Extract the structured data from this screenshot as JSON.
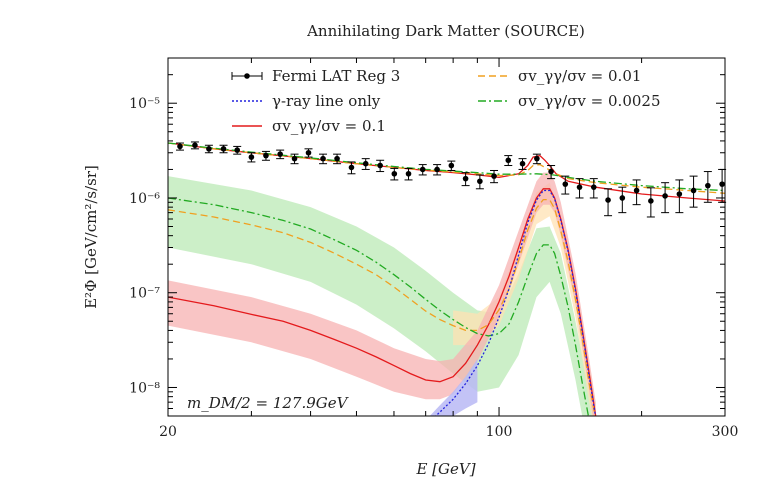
{
  "chart_data": {
    "type": "line",
    "title": "Annihilating Dark Matter (SOURCE)",
    "xlabel": "E [GeV]",
    "ylabel": "E²Φ [GeV/cm²/s/sr]",
    "xscale": "log",
    "yscale": "log",
    "xlim": [
      20,
      300
    ],
    "ylim": [
      5e-09,
      3e-05
    ],
    "x_ticks": [
      {
        "value": 20,
        "label": "20"
      },
      {
        "value": 100,
        "label": "100"
      },
      {
        "value": 300,
        "label": "300"
      }
    ],
    "y_ticks": [
      {
        "value": 1e-08,
        "label": "10⁻⁸"
      },
      {
        "value": 1e-07,
        "label": "10⁻⁷"
      },
      {
        "value": 1e-06,
        "label": "10⁻⁶"
      },
      {
        "value": 1e-05,
        "label": "10⁻⁵"
      }
    ],
    "annotation": "m_DM/2 = 127.9GeV",
    "legend": [
      {
        "label": "Fermi LAT Reg 3",
        "style": "errorbar",
        "color": "#000000"
      },
      {
        "label": "γ-ray line only",
        "style": "dotted",
        "color": "#2222dd"
      },
      {
        "label": "σv_γγ/σv = 0.1",
        "style": "solid",
        "color": "#e41a1c"
      },
      {
        "label": "σv_γγ/σv = 0.01",
        "style": "dashed",
        "color": "#f0a020"
      },
      {
        "label": "σv_γγ/σv = 0.0025",
        "style": "dashdot",
        "color": "#22aa22"
      }
    ],
    "data_points": {
      "name": "Fermi LAT Reg 3",
      "x": [
        21.2,
        22.8,
        24.4,
        26.2,
        28.0,
        30.0,
        32.2,
        34.5,
        37.0,
        39.6,
        42.5,
        45.5,
        48.8,
        52.3,
        56.1,
        60.1,
        64.4,
        69.0,
        74.0,
        79.3,
        85.0,
        91.1,
        97.6,
        104.6,
        112.1,
        120.2,
        128.8,
        138.0,
        147.9,
        158.5,
        169.9,
        182.1,
        195.2,
        209.2,
        224.2,
        240.3,
        257.5,
        276.0,
        295.8
      ],
      "y": [
        3.5e-06,
        3.6e-06,
        3.3e-06,
        3.3e-06,
        3.2e-06,
        2.7e-06,
        2.8e-06,
        2.9e-06,
        2.6e-06,
        3e-06,
        2.6e-06,
        2.6e-06,
        2.1e-06,
        2.3e-06,
        2.2e-06,
        1.8e-06,
        1.8e-06,
        2e-06,
        2e-06,
        2.2e-06,
        1.6e-06,
        1.5e-06,
        1.7e-06,
        2.5e-06,
        2.3e-06,
        2.6e-06,
        1.9e-06,
        1.4e-06,
        1.3e-06,
        1.3e-06,
        9.5e-07,
        1e-06,
        1.2e-06,
        9.3e-07,
        1.05e-06,
        1.1e-06,
        1.2e-06,
        1.35e-06,
        1.4e-06
      ],
      "err_lo": [
        3e-07,
        3e-07,
        3e-07,
        3e-07,
        3e-07,
        3e-07,
        3e-07,
        3e-07,
        3e-07,
        3e-07,
        3e-07,
        3e-07,
        3e-07,
        3e-07,
        3e-07,
        2.5e-07,
        2.5e-07,
        2.5e-07,
        2.5e-07,
        2.5e-07,
        2.5e-07,
        2.5e-07,
        2.5e-07,
        3e-07,
        3e-07,
        3e-07,
        3e-07,
        3e-07,
        3e-07,
        3e-07,
        3e-07,
        3e-07,
        3.5e-07,
        3e-07,
        3.5e-07,
        4e-07,
        4e-07,
        4.5e-07,
        5e-07
      ],
      "err_hi": [
        3e-07,
        3e-07,
        3e-07,
        3e-07,
        3e-07,
        3e-07,
        3e-07,
        3e-07,
        3e-07,
        3e-07,
        3e-07,
        3e-07,
        3e-07,
        3e-07,
        3e-07,
        2.5e-07,
        2.5e-07,
        2.5e-07,
        2.5e-07,
        2.5e-07,
        2.5e-07,
        2.5e-07,
        2.5e-07,
        3e-07,
        3e-07,
        3e-07,
        3e-07,
        3e-07,
        3e-07,
        3e-07,
        3e-07,
        3e-07,
        3.5e-07,
        3.5e-07,
        4e-07,
        4.5e-07,
        5e-07,
        5.5e-07,
        6e-07
      ]
    },
    "series": [
      {
        "name": "Fermi LAT Reg 3 fit (0.1)",
        "kind": "total",
        "color": "#e41a1c",
        "dash": "",
        "x": [
          20,
          25,
          30,
          40,
          50,
          60,
          70,
          80,
          90,
          100,
          110,
          115,
          118,
          122,
          125,
          127.9,
          132,
          140,
          160,
          200,
          250,
          300
        ],
        "y": [
          3.8e-06,
          3.3e-06,
          3e-06,
          2.6e-06,
          2.3e-06,
          2.1e-06,
          1.95e-06,
          1.85e-06,
          1.75e-06,
          1.65e-06,
          1.8e-06,
          2.2e-06,
          2.7e-06,
          2.8e-06,
          2.5e-06,
          2.2e-06,
          1.8e-06,
          1.5e-06,
          1.3e-06,
          1.1e-06,
          1e-06,
          9.3e-07
        ]
      },
      {
        "name": "total 0.01",
        "kind": "total",
        "color": "#f0a020",
        "dash": "7,4",
        "x": [
          20,
          25,
          30,
          40,
          50,
          60,
          70,
          80,
          90,
          100,
          110,
          115,
          118,
          122,
          125,
          132,
          140,
          160,
          200,
          250,
          300
        ],
        "y": [
          3.8e-06,
          3.3e-06,
          3e-06,
          2.6e-06,
          2.3e-06,
          2.1e-06,
          1.97e-06,
          1.88e-06,
          1.8e-06,
          1.72e-06,
          1.75e-06,
          1.95e-06,
          2.2e-06,
          2.25e-06,
          2.1e-06,
          1.8e-06,
          1.6e-06,
          1.45e-06,
          1.3e-06,
          1.2e-06,
          1.12e-06
        ]
      },
      {
        "name": "total 0.0025",
        "kind": "total",
        "color": "#22aa22",
        "dash": "8,3,2,3",
        "x": [
          20,
          25,
          30,
          40,
          50,
          60,
          70,
          80,
          90,
          100,
          110,
          120,
          130,
          140,
          160,
          200,
          250,
          300
        ],
        "y": [
          3.8e-06,
          3.35e-06,
          3.05e-06,
          2.65e-06,
          2.35e-06,
          2.15e-06,
          2e-06,
          1.92e-06,
          1.85e-06,
          1.78e-06,
          1.78e-06,
          1.8e-06,
          1.75e-06,
          1.65e-06,
          1.5e-06,
          1.35e-06,
          1.25e-06,
          1.2e-06
        ]
      },
      {
        "name": "σv_γγ/σv = 0.1",
        "kind": "model",
        "color": "#e41a1c",
        "dash": "",
        "x": [
          20,
          25,
          30,
          35,
          40,
          45,
          50,
          55,
          60,
          65,
          70,
          75,
          80,
          85,
          90,
          95,
          100,
          105,
          110,
          115,
          120,
          124,
          127.9,
          131,
          135,
          140,
          145,
          150,
          155,
          160
        ],
        "y": [
          9e-08,
          7.3e-08,
          5.9e-08,
          5e-08,
          4e-08,
          3.2e-08,
          2.6e-08,
          2.1e-08,
          1.7e-08,
          1.4e-08,
          1.2e-08,
          1.15e-08,
          1.3e-08,
          1.8e-08,
          2.8e-08,
          4.6e-08,
          8e-08,
          1.5e-07,
          3e-07,
          6e-07,
          1e-06,
          1.25e-06,
          1.25e-06,
          1e-06,
          6e-07,
          2.8e-07,
          1.1e-07,
          4e-08,
          1.4e-08,
          5e-09
        ]
      },
      {
        "name": "σv_γγ/σv = 0.01",
        "kind": "model",
        "color": "#f0a020",
        "dash": "7,4",
        "x": [
          20,
          25,
          30,
          35,
          40,
          45,
          50,
          55,
          60,
          65,
          70,
          75,
          80,
          85,
          90,
          95,
          100,
          105,
          110,
          115,
          120,
          124,
          127.9,
          131,
          135,
          140,
          145,
          150,
          155,
          160
        ],
        "y": [
          7.5e-07,
          6.3e-07,
          5.2e-07,
          4.3e-07,
          3.4e-07,
          2.6e-07,
          2e-07,
          1.55e-07,
          1.15e-07,
          8.5e-08,
          6.4e-08,
          5.2e-08,
          4.5e-08,
          4e-08,
          4e-08,
          4.6e-08,
          6.6e-08,
          1.1e-07,
          2.2e-07,
          4.6e-07,
          7.8e-07,
          9.6e-07,
          9.6e-07,
          7.7e-07,
          4.5e-07,
          2.1e-07,
          8.5e-08,
          3.2e-08,
          1.1e-08,
          4.5e-09
        ]
      },
      {
        "name": "σv_γγ/σv = 0.0025",
        "kind": "model",
        "color": "#22aa22",
        "dash": "8,3,2,3",
        "x": [
          20,
          25,
          30,
          35,
          40,
          45,
          50,
          55,
          60,
          65,
          70,
          75,
          80,
          85,
          90,
          95,
          100,
          105,
          110,
          115,
          120,
          124,
          127.9,
          131,
          135,
          140,
          145,
          150,
          155,
          160
        ],
        "y": [
          1e-06,
          8.5e-07,
          7e-07,
          5.8e-07,
          4.7e-07,
          3.6e-07,
          2.8e-07,
          2.1e-07,
          1.55e-07,
          1.15e-07,
          8.5e-08,
          6.5e-08,
          5.2e-08,
          4.3e-08,
          3.7e-08,
          3.5e-08,
          3.7e-08,
          4.7e-08,
          8e-08,
          1.5e-07,
          2.6e-07,
          3.2e-07,
          3.2e-07,
          2.6e-07,
          1.5e-07,
          7e-08,
          2.8e-08,
          1.1e-08,
          4.5e-09,
          2e-09
        ]
      },
      {
        "name": "γ-ray line only",
        "kind": "model",
        "color": "#2222dd",
        "dash": "2,2",
        "x": [
          70,
          75,
          80,
          85,
          90,
          95,
          100,
          105,
          110,
          115,
          120,
          124,
          127.9,
          131,
          135,
          140,
          145,
          150,
          155,
          160
        ],
        "y": [
          4e-09,
          5.5e-09,
          7.5e-09,
          1.1e-08,
          1.7e-08,
          2.9e-08,
          5.5e-08,
          1.1e-07,
          2.5e-07,
          5.5e-07,
          9.5e-07,
          1.2e-06,
          1.2e-06,
          9.8e-07,
          5.8e-07,
          2.7e-07,
          1.05e-07,
          3.8e-08,
          1.3e-08,
          4.8e-09
        ]
      }
    ],
    "bands": [
      {
        "name": "band 0.0025",
        "color": "#b7e8b0",
        "opacity": 0.7,
        "x": [
          20,
          30,
          40,
          50,
          60,
          70,
          80,
          90,
          100,
          110,
          120,
          127.9,
          135,
          145,
          155,
          160
        ],
        "lo": [
          3e-07,
          2e-07,
          1.3e-07,
          7.5e-08,
          4.2e-08,
          2.4e-08,
          1.4e-08,
          9e-09,
          1e-08,
          2.2e-08,
          9e-08,
          1.3e-07,
          6e-08,
          1.2e-08,
          2e-09,
          1e-09
        ],
        "hi": [
          1.7e-06,
          1.2e-06,
          8e-07,
          5e-07,
          3e-07,
          1.7e-07,
          1e-07,
          6.5e-08,
          6e-08,
          1.6e-07,
          4.8e-07,
          5e-07,
          2.6e-07,
          5e-08,
          9e-09,
          4e-09
        ]
      },
      {
        "name": "band 0.01",
        "color": "#ffe2b3",
        "opacity": 0.75,
        "x": [
          80,
          90,
          100,
          110,
          120,
          127.9,
          135,
          145,
          155,
          160
        ],
        "lo": [
          2.8e-08,
          2.8e-08,
          4.5e-08,
          1.4e-07,
          5.3e-07,
          6.4e-07,
          3e-07,
          5.5e-08,
          7e-09,
          3e-09
        ],
        "hi": [
          6.5e-08,
          6e-08,
          9e-08,
          3.2e-07,
          1.15e-06,
          1.45e-06,
          6.5e-07,
          1.3e-07,
          1.7e-08,
          7e-09
        ]
      },
      {
        "name": "band 0.1",
        "color": "#f7b1b1",
        "opacity": 0.75,
        "x": [
          20,
          30,
          40,
          50,
          60,
          70,
          75,
          80,
          90,
          100,
          110,
          120,
          124,
          127.9,
          131,
          135,
          145,
          155,
          160
        ],
        "lo": [
          4.5e-08,
          3e-08,
          2e-08,
          1.3e-08,
          9e-09,
          7.5e-09,
          7.5e-09,
          8.5e-09,
          1.9e-08,
          5.5e-08,
          2e-07,
          7e-07,
          8.5e-07,
          8.5e-07,
          7e-07,
          4e-07,
          7.5e-08,
          9e-09,
          3e-09
        ],
        "hi": [
          1.35e-07,
          9e-08,
          6e-08,
          4e-08,
          2.6e-08,
          2e-08,
          1.9e-08,
          2e-08,
          4e-08,
          1.2e-07,
          4.5e-07,
          1.5e-06,
          1.85e-06,
          1.85e-06,
          1.5e-06,
          9e-07,
          1.6e-07,
          2e-08,
          7e-09
        ]
      },
      {
        "name": "band line only",
        "color": "#b9b9f5",
        "opacity": 0.85,
        "x": [
          70,
          75,
          80,
          85,
          90
        ],
        "lo": [
          3e-09,
          4e-09,
          5e-09,
          6e-09,
          7e-09
        ],
        "hi": [
          4.5e-09,
          6.5e-09,
          9e-09,
          1.3e-08,
          2e-08
        ]
      }
    ]
  }
}
